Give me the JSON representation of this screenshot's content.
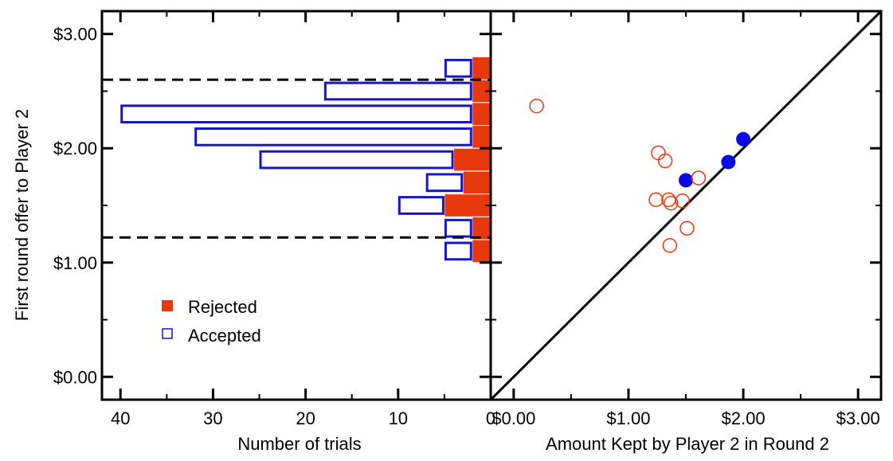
{
  "colors": {
    "rejected": "#e8380d",
    "accepted": "#1616c8",
    "filled_point": "#0a0ae6",
    "axis": "#000000"
  },
  "chart_data": [
    {
      "type": "bar",
      "orientation": "horizontal",
      "title": "",
      "ylabel": "First round offer to Player 2",
      "xlabel": "Number of trials",
      "x_reversed": true,
      "xlim": [
        42,
        0
      ],
      "ylim": [
        -0.2,
        3.2
      ],
      "xticks": [
        40,
        30,
        20,
        10,
        0
      ],
      "xtick_labels": [
        "40",
        "30",
        "20",
        "10",
        "0"
      ],
      "yticks": [
        0,
        1,
        2,
        3
      ],
      "ytick_labels": [
        "$0.00",
        "$1.00",
        "$2.00",
        "$3.00"
      ],
      "bin_centers": [
        2.7,
        2.5,
        2.3,
        2.1,
        1.9,
        1.7,
        1.5,
        1.3,
        1.1
      ],
      "bin_width": 0.2,
      "series": [
        {
          "name": "Rejected",
          "style": "stacked-filled",
          "values": [
            2,
            2,
            2,
            2,
            4,
            3,
            5,
            2,
            2
          ]
        },
        {
          "name": "Accepted",
          "style": "stacked-outline",
          "values": [
            3,
            16,
            38,
            30,
            21,
            4,
            5,
            3,
            3
          ]
        }
      ],
      "reference_lines": [
        {
          "style": "dashed",
          "y": 2.6
        },
        {
          "style": "dashed",
          "y": 1.22
        }
      ],
      "legend": {
        "placement": "lower-left",
        "entries": [
          "Rejected",
          "Accepted"
        ]
      }
    },
    {
      "type": "scatter",
      "title": "",
      "xlabel": "Amount Kept by Player 2 in Round 2",
      "ylabel": "",
      "xlim": [
        -0.2,
        3.2
      ],
      "ylim": [
        -0.2,
        3.2
      ],
      "xticks": [
        0,
        1,
        2,
        3
      ],
      "xtick_labels": [
        "$0.00",
        "$1.00",
        "$2.00",
        "$3.00"
      ],
      "identity_line": true,
      "series": [
        {
          "style": "filled",
          "points": [
            [
              1.5,
              1.72
            ],
            [
              1.87,
              1.88
            ],
            [
              2.0,
              2.08
            ]
          ]
        },
        {
          "style": "hollow",
          "points": [
            [
              0.2,
              2.37
            ],
            [
              1.26,
              1.96
            ],
            [
              1.32,
              1.89
            ],
            [
              1.61,
              1.74
            ],
            [
              1.24,
              1.55
            ],
            [
              1.35,
              1.55
            ],
            [
              1.37,
              1.52
            ],
            [
              1.47,
              1.54
            ],
            [
              1.51,
              1.3
            ],
            [
              1.36,
              1.15
            ]
          ]
        }
      ]
    }
  ]
}
